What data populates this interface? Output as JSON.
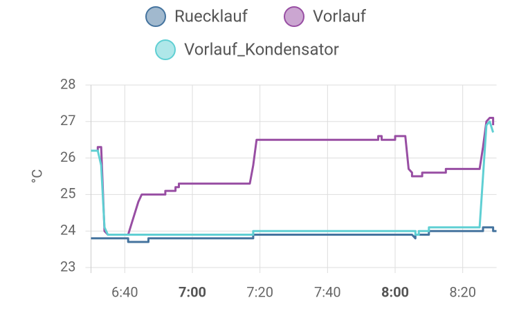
{
  "chart_data": {
    "type": "line",
    "y_label": "°C",
    "xlim": [
      "6:30",
      "8:30"
    ],
    "xticks": [
      "6:40",
      "7:00",
      "7:20",
      "7:40",
      "8:00",
      "8:20"
    ],
    "bold_ticks": [
      "7:00",
      "8:00"
    ],
    "ylim": [
      23,
      28
    ],
    "yticks": [
      23,
      24,
      25,
      26,
      27,
      28
    ],
    "grid": true,
    "series": [
      {
        "name": "Ruecklauf",
        "color": "#44739e",
        "x": [
          "6:30",
          "6:41",
          "6:41",
          "6:47",
          "6:47",
          "7:18",
          "7:18",
          "8:05",
          "8:06",
          "8:06",
          "8:10",
          "8:10",
          "8:26",
          "8:26",
          "8:29",
          "8:29",
          "8:30"
        ],
        "values": [
          23.8,
          23.8,
          23.7,
          23.7,
          23.8,
          23.8,
          23.9,
          23.9,
          23.8,
          23.9,
          23.9,
          24.0,
          24.0,
          24.1,
          24.1,
          24.0,
          24.0
        ]
      },
      {
        "name": "Vorlauf",
        "color": "#984ea3",
        "x": [
          "6:30",
          "6:32",
          "6:32",
          "6:33",
          "6:34",
          "6:35",
          "6:41",
          "6:42",
          "6:43",
          "6:44",
          "6:45",
          "6:52",
          "6:52",
          "6:55",
          "6:55",
          "6:56",
          "6:56",
          "7:17",
          "7:18",
          "7:19",
          "7:55",
          "7:55",
          "7:56",
          "7:56",
          "8:00",
          "8:00",
          "8:03",
          "8:04",
          "8:05",
          "8:05",
          "8:08",
          "8:08",
          "8:15",
          "8:15",
          "8:25",
          "8:26",
          "8:27",
          "8:28",
          "8:29",
          "8:29"
        ],
        "values": [
          26.2,
          26.2,
          26.3,
          26.3,
          24.0,
          23.9,
          23.9,
          24.2,
          24.5,
          24.8,
          25.0,
          25.0,
          25.1,
          25.1,
          25.2,
          25.2,
          25.3,
          25.3,
          25.8,
          26.5,
          26.5,
          26.6,
          26.6,
          26.5,
          26.5,
          26.6,
          26.6,
          25.7,
          25.6,
          25.5,
          25.5,
          25.6,
          25.6,
          25.7,
          25.7,
          26.3,
          27.0,
          27.1,
          27.1,
          26.9
        ]
      },
      {
        "name": "Vorlauf_Kondensator",
        "color": "#5fcfd3",
        "x": [
          "6:30",
          "6:32",
          "6:33",
          "6:34",
          "6:35",
          "7:18",
          "7:18",
          "8:06",
          "8:06",
          "8:07",
          "8:07",
          "8:10",
          "8:10",
          "8:25",
          "8:26",
          "8:27",
          "8:28",
          "8:29"
        ],
        "values": [
          26.2,
          26.2,
          25.8,
          24.1,
          23.9,
          23.9,
          24.0,
          24.0,
          23.9,
          23.9,
          24.0,
          24.0,
          24.1,
          24.1,
          25.5,
          26.9,
          27.0,
          26.7
        ]
      }
    ]
  }
}
